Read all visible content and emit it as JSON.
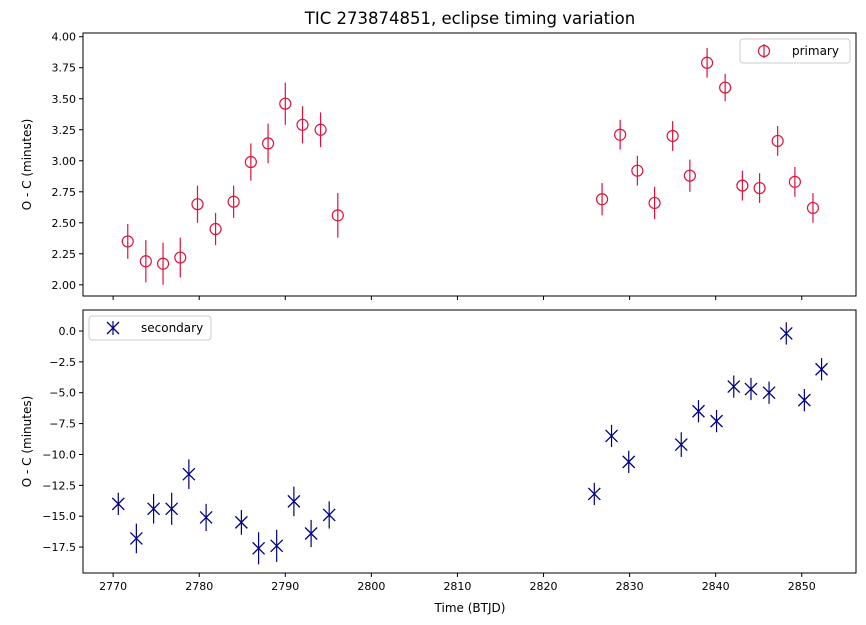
{
  "chart_data": {
    "type": "scatter",
    "title": "TIC 273874851, eclipse timing variation",
    "xlabel": "Time (BTJD)",
    "x_ticks": [
      2770,
      2780,
      2790,
      2800,
      2810,
      2820,
      2830,
      2840,
      2850
    ],
    "xlim": [
      2766.5,
      2856.3
    ],
    "panels": [
      {
        "ylabel": "O - C (minutes)",
        "ylim": [
          1.91,
          4.03
        ],
        "y_ticks": [
          "2.00",
          "2.25",
          "2.50",
          "2.75",
          "3.00",
          "3.25",
          "3.50",
          "3.75",
          "4.00"
        ],
        "show_x_tick_labels": false,
        "legend": "top-right",
        "series": [
          {
            "name": "primary",
            "marker": "circle",
            "color": "#dc143c",
            "x": [
              2771.7,
              2773.8,
              2775.8,
              2777.8,
              2779.8,
              2781.9,
              2784.0,
              2786.0,
              2788.0,
              2790.0,
              2792.0,
              2794.1,
              2796.1,
              2826.8,
              2828.9,
              2830.9,
              2832.9,
              2835.0,
              2837.0,
              2839.0,
              2841.1,
              2843.1,
              2845.1,
              2847.2,
              2849.2,
              2851.3
            ],
            "y": [
              2.35,
              2.19,
              2.17,
              2.22,
              2.65,
              2.45,
              2.67,
              2.99,
              3.14,
              3.46,
              3.29,
              3.25,
              2.56,
              2.69,
              3.21,
              2.92,
              2.66,
              3.2,
              2.88,
              3.79,
              3.59,
              2.8,
              2.78,
              3.16,
              2.83,
              2.62
            ],
            "err": [
              0.14,
              0.17,
              0.17,
              0.16,
              0.15,
              0.13,
              0.13,
              0.15,
              0.16,
              0.17,
              0.15,
              0.14,
              0.18,
              0.13,
              0.12,
              0.12,
              0.13,
              0.12,
              0.13,
              0.12,
              0.11,
              0.12,
              0.12,
              0.12,
              0.12,
              0.12
            ]
          }
        ]
      },
      {
        "ylabel": "O - C (minutes)",
        "ylim": [
          -19.6,
          1.7
        ],
        "y_ticks": [
          "0.0",
          "−2.5",
          "−5.0",
          "−7.5",
          "−10.0",
          "−12.5",
          "−15.0",
          "−17.5"
        ],
        "show_x_tick_labels": true,
        "legend": "top-left",
        "series": [
          {
            "name": "secondary",
            "marker": "x",
            "color": "#000080",
            "x": [
              2770.6,
              2772.7,
              2774.7,
              2776.8,
              2778.8,
              2780.8,
              2784.9,
              2786.9,
              2789.0,
              2791.0,
              2793.0,
              2795.1,
              2825.9,
              2827.9,
              2829.9,
              2836.0,
              2838.0,
              2840.1,
              2842.1,
              2844.1,
              2846.2,
              2848.2,
              2850.3,
              2852.3
            ],
            "y": [
              -14.0,
              -16.8,
              -14.4,
              -14.4,
              -11.6,
              -15.1,
              -15.5,
              -17.6,
              -17.4,
              -13.8,
              -16.4,
              -14.9,
              -13.2,
              -8.5,
              -10.6,
              -9.2,
              -6.5,
              -7.3,
              -4.5,
              -4.7,
              -5.0,
              -0.2,
              -5.6,
              -3.1
            ],
            "err": [
              0.9,
              1.2,
              1.2,
              1.3,
              1.2,
              1.1,
              1.0,
              1.3,
              1.3,
              1.2,
              1.1,
              1.1,
              0.9,
              0.9,
              0.9,
              1.0,
              0.9,
              0.9,
              0.9,
              0.9,
              0.9,
              0.9,
              0.9,
              0.9
            ]
          }
        ]
      }
    ]
  }
}
